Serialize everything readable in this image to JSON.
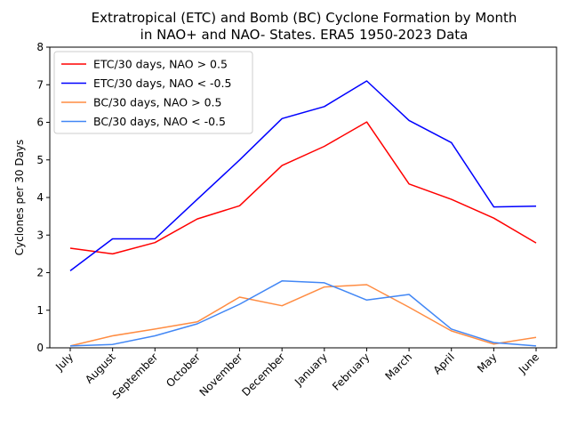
{
  "chart_data": {
    "type": "line",
    "title_lines": [
      "Extratropical (ETC) and Bomb (BC) Cyclone Formation by Month",
      "in NAO+ and NAO- States. ERA5 1950-2023 Data"
    ],
    "xlabel": "",
    "ylabel": "Cyclones per 30 Days",
    "categories": [
      "July",
      "August",
      "September",
      "October",
      "November",
      "December",
      "January",
      "February",
      "March",
      "April",
      "May",
      "June"
    ],
    "yticks": [
      "0",
      "1",
      "2",
      "3",
      "4",
      "5",
      "6",
      "7",
      "8"
    ],
    "ylim": [
      0,
      8
    ],
    "grid": false,
    "legend_position": "upper-left",
    "series": [
      {
        "name": "ETC/30 days, NAO > 0.5",
        "color": "#ff0000",
        "values": [
          2.65,
          2.5,
          2.8,
          3.43,
          3.78,
          4.85,
          5.36,
          6.01,
          4.36,
          3.95,
          3.45,
          2.79
        ]
      },
      {
        "name": "ETC/30 days, NAO < -0.5",
        "color": "#0000ff",
        "values": [
          2.05,
          2.9,
          2.9,
          3.95,
          5.0,
          6.1,
          6.42,
          7.1,
          6.05,
          5.46,
          3.75,
          3.77
        ]
      },
      {
        "name": "BC/30 days, NAO > 0.5",
        "color": "#ff8c42",
        "values": [
          0.05,
          0.32,
          0.5,
          0.69,
          1.35,
          1.12,
          1.62,
          1.68,
          1.08,
          0.45,
          0.1,
          0.28
        ]
      },
      {
        "name": "BC/30 days, NAO < -0.5",
        "color": "#4287f5",
        "values": [
          0.05,
          0.09,
          0.32,
          0.64,
          1.16,
          1.78,
          1.73,
          1.27,
          1.42,
          0.5,
          0.14,
          0.05
        ]
      }
    ]
  }
}
